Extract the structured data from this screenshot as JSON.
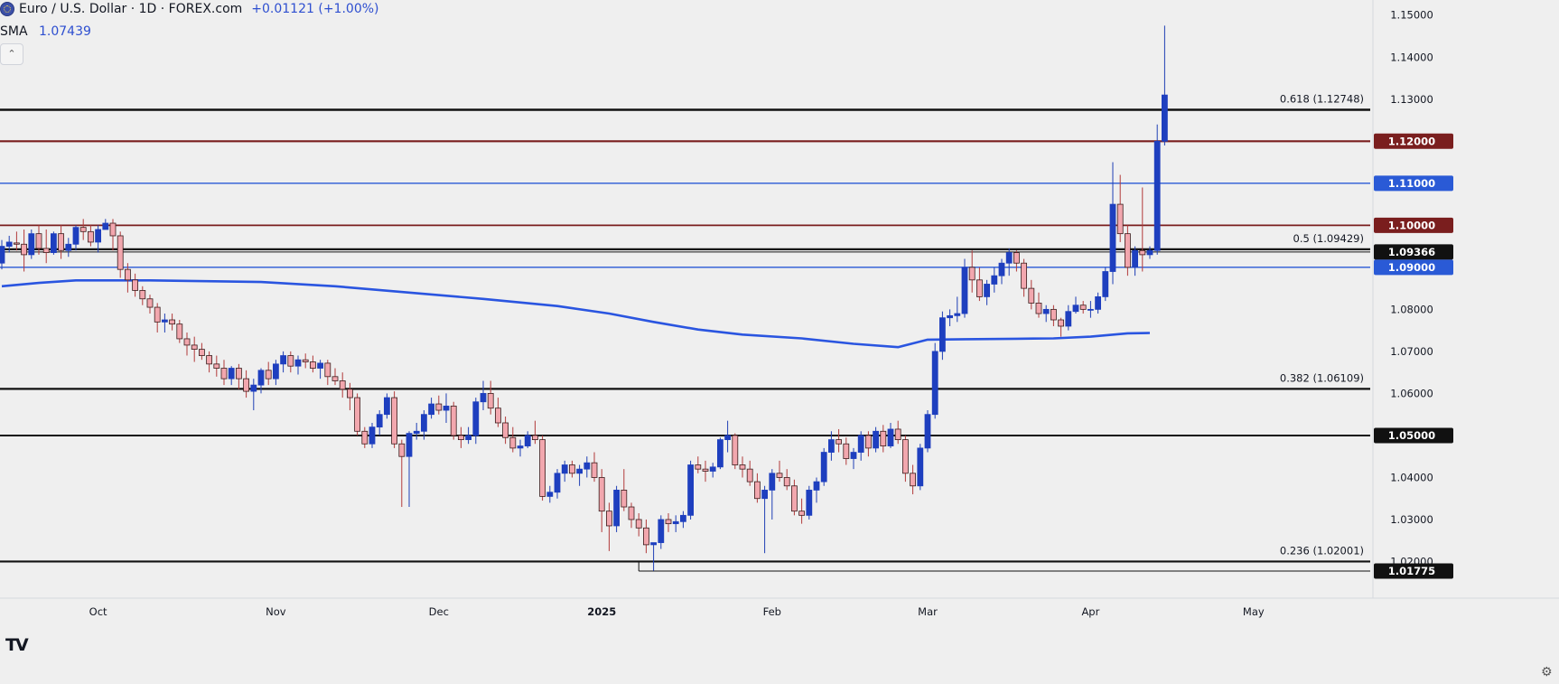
{
  "header": {
    "symbol_title": "Euro / U.S. Dollar · 1D · FOREX.com",
    "change": "+0.01121 (+1.00%)",
    "indicator_name": "SMA",
    "indicator_value": "1.07439",
    "collapse_icon": "chevron-up-icon"
  },
  "footer": {
    "logo_text": "TV",
    "settings_icon": "gear-icon"
  },
  "chart_data": {
    "type": "candlestick",
    "y_ticks": [
      "1.02000",
      "1.03000",
      "1.04000",
      "1.05000",
      "1.06000",
      "1.07000",
      "1.08000",
      "1.09000",
      "1.10000",
      "1.11000",
      "1.12000",
      "1.13000",
      "1.14000",
      "1.15000"
    ],
    "ylim": [
      1.0125,
      1.1525
    ],
    "x_labels": [
      {
        "label": "Oct",
        "index": 13
      },
      {
        "label": "Nov",
        "index": 37
      },
      {
        "label": "Dec",
        "index": 59
      },
      {
        "label": "2025",
        "index": 81
      },
      {
        "label": "Feb",
        "index": 104
      },
      {
        "label": "Mar",
        "index": 125
      },
      {
        "label": "Apr",
        "index": 147
      },
      {
        "label": "May",
        "index": 169
      }
    ],
    "levels": [
      {
        "price": 1.12748,
        "color": "#111111",
        "width": 2.4,
        "note": "0.618 (1.12748)",
        "badge": ""
      },
      {
        "price": 1.12,
        "color": "#7a1e1e",
        "width": 2.2,
        "note": "",
        "badge": "1.12000"
      },
      {
        "price": 1.11,
        "color": "#2a5ad6",
        "width": 1.4,
        "note": "",
        "badge": "1.11000"
      },
      {
        "price": 1.1,
        "color": "#7a1e1e",
        "width": 1.8,
        "note": "",
        "badge": "1.10000"
      },
      {
        "price": 1.09429,
        "color": "#111111",
        "width": 2.2,
        "note": "0.5 (1.09429)",
        "badge": ""
      },
      {
        "price": 1.09366,
        "color": "#111111",
        "width": 1.0,
        "note": "",
        "badge": "1.09366"
      },
      {
        "price": 1.09,
        "color": "#2a5ad6",
        "width": 1.4,
        "note": "",
        "badge": "1.09000"
      },
      {
        "price": 1.06109,
        "color": "#111111",
        "width": 2.2,
        "note": "0.382 (1.06109)",
        "badge": ""
      },
      {
        "price": 1.05,
        "color": "#111111",
        "width": 2.0,
        "note": "",
        "badge": "1.05000"
      },
      {
        "price": 1.02001,
        "color": "#111111",
        "width": 2.2,
        "note": "0.236 (1.02001)",
        "badge": ""
      },
      {
        "price": 1.01775,
        "color": "#111111",
        "width": 1.0,
        "note": "",
        "badge": "1.01775",
        "start_index": 86
      }
    ],
    "sma": {
      "name": "SMA",
      "color": "#2a55e0",
      "points": [
        [
          0,
          1.0855
        ],
        [
          5,
          1.0863
        ],
        [
          10,
          1.0869
        ],
        [
          20,
          1.0869
        ],
        [
          35,
          1.0865
        ],
        [
          45,
          1.0855
        ],
        [
          55,
          1.084
        ],
        [
          65,
          1.0825
        ],
        [
          75,
          1.0808
        ],
        [
          82,
          1.079
        ],
        [
          88,
          1.077
        ],
        [
          94,
          1.0752
        ],
        [
          100,
          1.074
        ],
        [
          108,
          1.0731
        ],
        [
          115,
          1.0718
        ],
        [
          121,
          1.071
        ],
        [
          125,
          1.0728
        ],
        [
          130,
          1.0729
        ],
        [
          137,
          1.073
        ],
        [
          142,
          1.0731
        ],
        [
          147,
          1.0735
        ],
        [
          152,
          1.0743
        ],
        [
          155,
          1.07439
        ]
      ]
    },
    "candles": [
      [
        1.091,
        1.0965,
        1.0895,
        1.095
      ],
      [
        1.095,
        1.0975,
        1.0935,
        1.096
      ],
      [
        1.0958,
        1.0985,
        1.094,
        1.0955
      ],
      [
        1.0955,
        1.099,
        1.089,
        1.093
      ],
      [
        1.093,
        1.099,
        1.092,
        1.098
      ],
      [
        1.098,
        1.1,
        1.093,
        1.0945
      ],
      [
        1.0945,
        1.099,
        1.091,
        1.0935
      ],
      [
        1.0935,
        1.0985,
        1.093,
        1.098
      ],
      [
        1.098,
        1.1,
        1.092,
        1.094
      ],
      [
        1.094,
        1.097,
        1.0925,
        1.0955
      ],
      [
        1.0955,
        1.1,
        1.094,
        1.0995
      ],
      [
        1.0995,
        1.1015,
        1.0965,
        1.0985
      ],
      [
        1.0985,
        1.1,
        1.095,
        1.096
      ],
      [
        1.096,
        1.1,
        1.0935,
        1.099
      ],
      [
        1.099,
        1.1015,
        1.099,
        1.1005
      ],
      [
        1.1005,
        1.1015,
        1.094,
        1.0975
      ],
      [
        1.0975,
        1.0985,
        1.0875,
        1.0895
      ],
      [
        1.0895,
        1.091,
        1.084,
        1.087
      ],
      [
        1.087,
        1.0885,
        1.083,
        1.0845
      ],
      [
        1.0845,
        1.0855,
        1.081,
        1.0825
      ],
      [
        1.0825,
        1.0835,
        1.079,
        1.0805
      ],
      [
        1.0805,
        1.0815,
        1.0745,
        1.077
      ],
      [
        1.077,
        1.079,
        1.0745,
        1.0775
      ],
      [
        1.0775,
        1.079,
        1.075,
        1.0765
      ],
      [
        1.0765,
        1.0775,
        1.072,
        1.073
      ],
      [
        1.073,
        1.0745,
        1.069,
        1.0715
      ],
      [
        1.0715,
        1.0735,
        1.0675,
        1.0705
      ],
      [
        1.0705,
        1.072,
        1.068,
        1.069
      ],
      [
        1.069,
        1.07,
        1.065,
        1.067
      ],
      [
        1.067,
        1.069,
        1.064,
        1.066
      ],
      [
        1.066,
        1.068,
        1.062,
        1.0635
      ],
      [
        1.0635,
        1.0665,
        1.062,
        1.066
      ],
      [
        1.066,
        1.067,
        1.061,
        1.0635
      ],
      [
        1.0635,
        1.0655,
        1.059,
        1.0605
      ],
      [
        1.0605,
        1.0635,
        1.056,
        1.062
      ],
      [
        1.062,
        1.066,
        1.06,
        1.0655
      ],
      [
        1.0655,
        1.0675,
        1.062,
        1.0635
      ],
      [
        1.0635,
        1.068,
        1.062,
        1.067
      ],
      [
        1.067,
        1.07,
        1.065,
        1.069
      ],
      [
        1.069,
        1.07,
        1.065,
        1.0665
      ],
      [
        1.0665,
        1.069,
        1.0645,
        1.068
      ],
      [
        1.068,
        1.0695,
        1.066,
        1.0675
      ],
      [
        1.0675,
        1.069,
        1.065,
        1.066
      ],
      [
        1.066,
        1.068,
        1.0635,
        1.0672
      ],
      [
        1.0672,
        1.068,
        1.062,
        1.064
      ],
      [
        1.064,
        1.066,
        1.062,
        1.063
      ],
      [
        1.063,
        1.065,
        1.059,
        1.061
      ],
      [
        1.061,
        1.0625,
        1.056,
        1.059
      ],
      [
        1.059,
        1.06,
        1.05,
        1.051
      ],
      [
        1.051,
        1.052,
        1.047,
        1.048
      ],
      [
        1.048,
        1.053,
        1.047,
        1.052
      ],
      [
        1.052,
        1.056,
        1.05,
        1.055
      ],
      [
        1.055,
        1.06,
        1.054,
        1.059
      ],
      [
        1.059,
        1.0605,
        1.047,
        1.048
      ],
      [
        1.048,
        1.049,
        1.033,
        1.045
      ],
      [
        1.045,
        1.051,
        1.033,
        1.0505
      ],
      [
        1.0505,
        1.053,
        1.049,
        1.051
      ],
      [
        1.051,
        1.056,
        1.049,
        1.055
      ],
      [
        1.055,
        1.059,
        1.054,
        1.0575
      ],
      [
        1.0575,
        1.0595,
        1.055,
        1.056
      ],
      [
        1.056,
        1.06,
        1.053,
        1.057
      ],
      [
        1.057,
        1.058,
        1.049,
        1.05
      ],
      [
        1.05,
        1.052,
        1.047,
        1.049
      ],
      [
        1.049,
        1.052,
        1.048,
        1.05
      ],
      [
        1.05,
        1.059,
        1.048,
        1.058
      ],
      [
        1.058,
        1.063,
        1.056,
        1.06
      ],
      [
        1.06,
        1.063,
        1.055,
        1.0565
      ],
      [
        1.0565,
        1.059,
        1.052,
        1.053
      ],
      [
        1.053,
        1.0545,
        1.048,
        1.0495
      ],
      [
        1.0495,
        1.052,
        1.046,
        1.047
      ],
      [
        1.047,
        1.049,
        1.045,
        1.0475
      ],
      [
        1.0475,
        1.051,
        1.047,
        1.05
      ],
      [
        1.05,
        1.0535,
        1.048,
        1.049
      ],
      [
        1.049,
        1.05,
        1.0345,
        1.0355
      ],
      [
        1.0355,
        1.038,
        1.034,
        1.0365
      ],
      [
        1.0365,
        1.042,
        1.035,
        1.041
      ],
      [
        1.041,
        1.044,
        1.039,
        1.043
      ],
      [
        1.043,
        1.044,
        1.04,
        1.041
      ],
      [
        1.041,
        1.043,
        1.038,
        1.042
      ],
      [
        1.042,
        1.045,
        1.04,
        1.0435
      ],
      [
        1.0435,
        1.046,
        1.039,
        1.04
      ],
      [
        1.04,
        1.042,
        1.027,
        1.032
      ],
      [
        1.032,
        1.034,
        1.0225,
        1.0285
      ],
      [
        1.0285,
        1.038,
        1.027,
        1.037
      ],
      [
        1.037,
        1.042,
        1.032,
        1.033
      ],
      [
        1.033,
        1.034,
        1.028,
        1.03
      ],
      [
        1.03,
        1.0315,
        1.026,
        1.028
      ],
      [
        1.028,
        1.03,
        1.022,
        1.024
      ],
      [
        1.024,
        1.0245,
        1.0178,
        1.0245
      ],
      [
        1.0245,
        1.031,
        1.023,
        1.03
      ],
      [
        1.03,
        1.0315,
        1.027,
        1.029
      ],
      [
        1.029,
        1.031,
        1.027,
        1.0295
      ],
      [
        1.0295,
        1.032,
        1.028,
        1.031
      ],
      [
        1.031,
        1.044,
        1.03,
        1.043
      ],
      [
        1.043,
        1.045,
        1.041,
        1.042
      ],
      [
        1.042,
        1.044,
        1.039,
        1.0415
      ],
      [
        1.0415,
        1.0435,
        1.04,
        1.0425
      ],
      [
        1.0425,
        1.0495,
        1.042,
        1.049
      ],
      [
        1.049,
        1.0535,
        1.046,
        1.05
      ],
      [
        1.05,
        1.0505,
        1.042,
        1.043
      ],
      [
        1.043,
        1.045,
        1.04,
        1.042
      ],
      [
        1.042,
        1.044,
        1.038,
        1.039
      ],
      [
        1.039,
        1.041,
        1.034,
        1.035
      ],
      [
        1.035,
        1.038,
        1.022,
        1.037
      ],
      [
        1.037,
        1.042,
        1.03,
        1.041
      ],
      [
        1.041,
        1.044,
        1.039,
        1.04
      ],
      [
        1.04,
        1.042,
        1.037,
        1.038
      ],
      [
        1.038,
        1.0395,
        1.031,
        1.032
      ],
      [
        1.032,
        1.035,
        1.029,
        1.031
      ],
      [
        1.031,
        1.038,
        1.03,
        1.037
      ],
      [
        1.037,
        1.04,
        1.034,
        1.039
      ],
      [
        1.039,
        1.047,
        1.038,
        1.046
      ],
      [
        1.046,
        1.051,
        1.044,
        1.049
      ],
      [
        1.049,
        1.0515,
        1.046,
        1.048
      ],
      [
        1.048,
        1.0495,
        1.043,
        1.0445
      ],
      [
        1.0445,
        1.047,
        1.042,
        1.046
      ],
      [
        1.046,
        1.051,
        1.044,
        1.05
      ],
      [
        1.05,
        1.051,
        1.045,
        1.047
      ],
      [
        1.047,
        1.052,
        1.046,
        1.051
      ],
      [
        1.051,
        1.0525,
        1.046,
        1.0475
      ],
      [
        1.0475,
        1.053,
        1.047,
        1.0515
      ],
      [
        1.0515,
        1.0535,
        1.048,
        1.049
      ],
      [
        1.049,
        1.05,
        1.039,
        1.041
      ],
      [
        1.041,
        1.043,
        1.036,
        1.038
      ],
      [
        1.038,
        1.048,
        1.037,
        1.047
      ],
      [
        1.047,
        1.056,
        1.046,
        1.055
      ],
      [
        1.055,
        1.072,
        1.054,
        1.07
      ],
      [
        1.07,
        1.0795,
        1.068,
        1.078
      ],
      [
        1.078,
        1.08,
        1.076,
        1.0785
      ],
      [
        1.0785,
        1.083,
        1.077,
        1.079
      ],
      [
        1.079,
        1.092,
        1.078,
        1.09
      ],
      [
        1.09,
        1.094,
        1.084,
        1.087
      ],
      [
        1.087,
        1.09,
        1.082,
        1.083
      ],
      [
        1.083,
        1.087,
        1.081,
        1.086
      ],
      [
        1.086,
        1.09,
        1.084,
        1.088
      ],
      [
        1.088,
        1.092,
        1.086,
        1.091
      ],
      [
        1.091,
        1.0945,
        1.088,
        1.0935
      ],
      [
        1.0935,
        1.094,
        1.089,
        1.091
      ],
      [
        1.091,
        1.092,
        1.083,
        1.085
      ],
      [
        1.085,
        1.087,
        1.08,
        1.0815
      ],
      [
        1.0815,
        1.084,
        1.078,
        1.079
      ],
      [
        1.079,
        1.081,
        1.077,
        1.08
      ],
      [
        1.08,
        1.081,
        1.076,
        1.0775
      ],
      [
        1.0775,
        1.078,
        1.0735,
        1.076
      ],
      [
        1.076,
        1.081,
        1.075,
        1.0795
      ],
      [
        1.0795,
        1.083,
        1.079,
        1.081
      ],
      [
        1.081,
        1.082,
        1.079,
        1.08
      ],
      [
        1.08,
        1.082,
        1.078,
        1.08
      ],
      [
        1.08,
        1.084,
        1.079,
        1.083
      ],
      [
        1.083,
        1.09,
        1.082,
        1.089
      ],
      [
        1.089,
        1.115,
        1.086,
        1.105
      ],
      [
        1.105,
        1.112,
        1.096,
        1.098
      ],
      [
        1.098,
        1.1,
        1.088,
        1.09
      ],
      [
        1.09,
        1.095,
        1.088,
        1.094
      ],
      [
        1.094,
        1.109,
        1.089,
        1.093
      ],
      [
        1.093,
        1.095,
        1.092,
        1.094
      ],
      [
        1.094,
        1.124,
        1.093,
        1.12
      ],
      [
        1.12,
        1.1475,
        1.119,
        1.131
      ]
    ]
  }
}
